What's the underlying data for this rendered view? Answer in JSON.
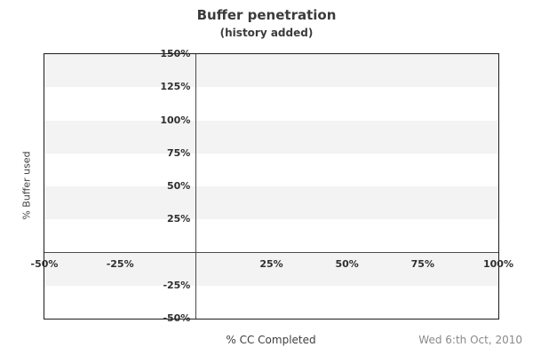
{
  "header": {
    "title": "Buffer penetration",
    "subtitle": "(history added)"
  },
  "footer": {
    "date": "Wed 6:th Oct, 2010"
  },
  "chart_data": {
    "type": "line",
    "title": "Buffer penetration",
    "subtitle": "(history added)",
    "xlabel": "% CC Completed",
    "ylabel": "% Buffer used",
    "xlim": [
      -50,
      100
    ],
    "ylim": [
      -50,
      150
    ],
    "xticks": [
      {
        "value": -50,
        "label": "-50%"
      },
      {
        "value": -25,
        "label": "-25%"
      },
      {
        "value": 25,
        "label": "25%"
      },
      {
        "value": 50,
        "label": "50%"
      },
      {
        "value": 75,
        "label": "75%"
      },
      {
        "value": 100,
        "label": "100%"
      }
    ],
    "yticks": [
      {
        "value": 150,
        "label": "150%"
      },
      {
        "value": 125,
        "label": "125%"
      },
      {
        "value": 100,
        "label": "100%"
      },
      {
        "value": 75,
        "label": "75%"
      },
      {
        "value": 50,
        "label": "50%"
      },
      {
        "value": 25,
        "label": "25%"
      },
      {
        "value": -25,
        "label": "-25%"
      },
      {
        "value": -50,
        "label": "-50%"
      }
    ],
    "zero_lines": {
      "horizontal_at_y": 0,
      "vertical_at_x": 0
    },
    "band_step": 25,
    "grid": "horizontal-alternating-bands",
    "legend": "none",
    "series": [],
    "colors": {
      "band": "#f3f3f3",
      "background": "#ffffff",
      "border": "#1c1c1c",
      "zero_line": "#4a4a4a",
      "tick_text": "#2f2f2f",
      "title_text": "#3b3b3b",
      "footer_text": "#8a8a8a"
    }
  }
}
